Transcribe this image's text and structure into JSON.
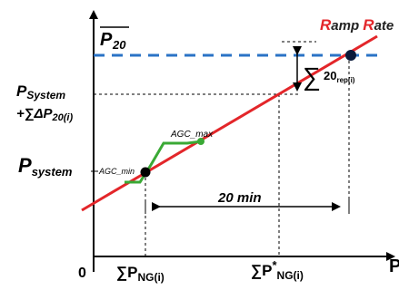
{
  "diagram": {
    "y_axis_top_label": "P",
    "y_axis_top_subscript": "20",
    "ramp_rate_label": {
      "r": "R",
      "amp": "amp ",
      "rr": "R",
      "ate": "ate"
    },
    "p_system_plus_label_line1": "P",
    "p_system_plus_label_line1_sub": "System",
    "p_system_plus_label_line2": "+∑ΔP",
    "p_system_plus_label_line2_sub": "20(i)",
    "p_system_label": "P",
    "p_system_label_sub": "system",
    "agc_min_label": "AGC_min",
    "agc_max_label": "AGC_max",
    "interval_label": "20 min",
    "sum_label_symbol": "∑",
    "sum_label_main": "20",
    "sum_label_sub": "rep(i)",
    "origin_label": "0",
    "x_axis_label": "P",
    "x_tick1_prefix": "∑P",
    "x_tick1_sub": "NG(i)",
    "x_tick2_prefix": "∑P",
    "x_tick2_sup": "*",
    "x_tick2_sub": "NG(i)"
  },
  "colors": {
    "ramp_line": "#e3262a",
    "agc_line": "#3aa935",
    "dashed_limit": "#2a73c6",
    "ramp_text": "#e3262a",
    "dot": "#000000"
  }
}
